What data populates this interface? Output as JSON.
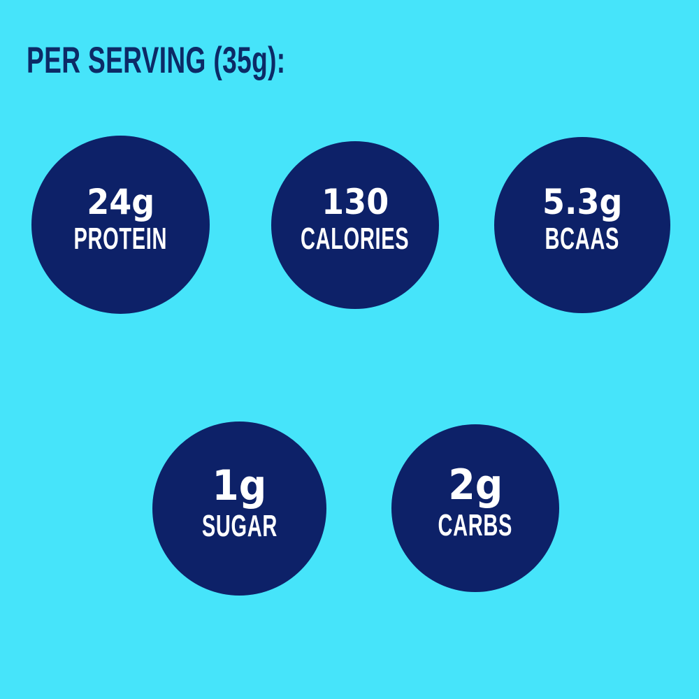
{
  "header": {
    "title": "PER SERVING (35g):"
  },
  "stats": [
    {
      "id": "protein",
      "value": "24g",
      "label": "PROTEIN"
    },
    {
      "id": "calories",
      "value": "130",
      "label": "CALORIES"
    },
    {
      "id": "bcaas",
      "value": "5.3g",
      "label": "BCAAS"
    },
    {
      "id": "sugar",
      "value": "1g",
      "label": "SUGAR"
    },
    {
      "id": "carbs",
      "value": "2g",
      "label": "CARBS"
    }
  ],
  "colors": {
    "background": "#46E4FA",
    "circle": "#0D2168",
    "title": "#0C2A66",
    "text": "#FFFFFF"
  },
  "chart_data": {
    "type": "table",
    "title": "PER SERVING (35g):",
    "categories": [
      "PROTEIN",
      "CALORIES",
      "BCAAS",
      "SUGAR",
      "CARBS"
    ],
    "values": [
      "24g",
      "130",
      "5.3g",
      "1g",
      "2g"
    ],
    "numeric_values": [
      24,
      130,
      5.3,
      1,
      2
    ],
    "units": [
      "g",
      "kcal",
      "g",
      "g",
      "g"
    ],
    "layout": "three bubbles top row, two bubbles bottom row"
  }
}
